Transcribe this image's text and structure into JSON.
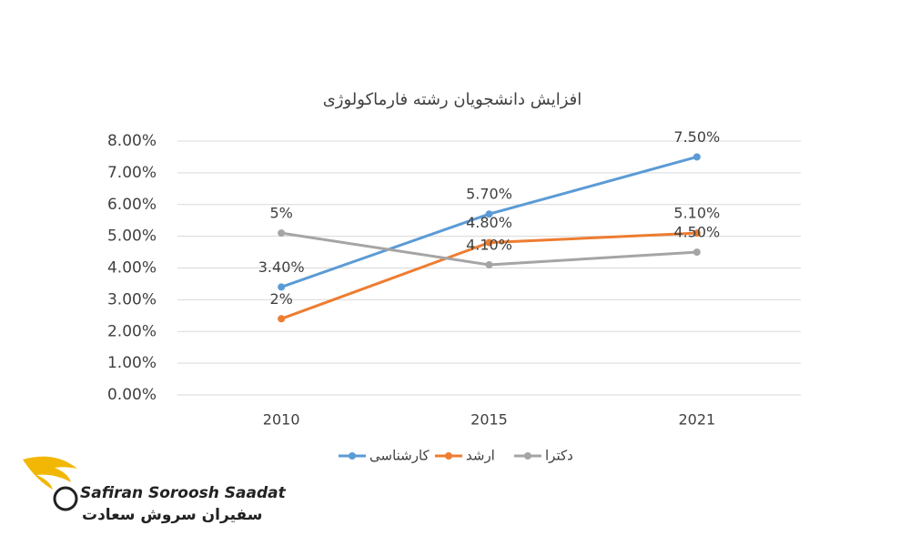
{
  "chart_data": {
    "type": "line",
    "title": "افزایش دانشجویان رشته فارماکولوژی",
    "categories": [
      "2010",
      "2015",
      "2021"
    ],
    "series": [
      {
        "name": "کارشناسی",
        "color": "#5b9bd5",
        "values": [
          3.4,
          5.7,
          7.5
        ],
        "value_labels": [
          "3.40%",
          "5.70%",
          "7.50%"
        ]
      },
      {
        "name": "ارشد",
        "color": "#ed7d31",
        "values": [
          2.4,
          4.8,
          5.1
        ],
        "value_labels": [
          "2%",
          "4.80%",
          "5.10%"
        ]
      },
      {
        "name": "دکترا",
        "color": "#a5a5a5",
        "values": [
          5.1,
          4.1,
          4.5
        ],
        "value_labels": [
          "5%",
          "4.10%",
          "4.50%"
        ]
      }
    ],
    "ylim": [
      0,
      8
    ],
    "yticks": [
      {
        "value": 0,
        "label": "0.00%"
      },
      {
        "value": 1,
        "label": "1.00%"
      },
      {
        "value": 2,
        "label": "2.00%"
      },
      {
        "value": 3,
        "label": "3.00%"
      },
      {
        "value": 4,
        "label": "4.00%"
      },
      {
        "value": 5,
        "label": "5.00%"
      },
      {
        "value": 6,
        "label": "6.00%"
      },
      {
        "value": 7,
        "label": "7.00%"
      },
      {
        "value": 8,
        "label": "8.00%"
      }
    ],
    "grid": true,
    "legend": "bottom"
  },
  "logo": {
    "name_en": "Safiran Soroosh Saadat",
    "name_fa": "سفیران سروش سعادت"
  }
}
